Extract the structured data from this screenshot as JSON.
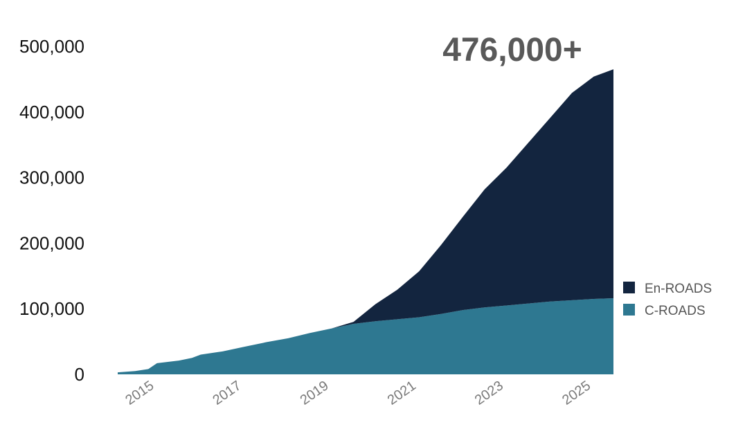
{
  "chart_data": {
    "type": "area",
    "stacked": true,
    "annotation": "476,000+",
    "y_ticks": [
      "500,000",
      "400,000",
      "300,000",
      "200,000",
      "100,000",
      "0"
    ],
    "x_ticks": [
      "2015",
      "2017",
      "2019",
      "2021",
      "2023",
      "2025"
    ],
    "ylim": [
      0,
      500000
    ],
    "xlim": [
      2014.6,
      2025.95
    ],
    "grid": false,
    "legend_position": "right",
    "x": [
      2014.6,
      2015.0,
      2015.3,
      2015.5,
      2016.0,
      2016.3,
      2016.5,
      2017.0,
      2017.5,
      2018.0,
      2018.5,
      2019.0,
      2019.5,
      2020.0,
      2020.5,
      2021.0,
      2021.5,
      2022.0,
      2022.5,
      2023.0,
      2023.5,
      2024.0,
      2024.5,
      2025.0,
      2025.5,
      2025.95
    ],
    "series": [
      {
        "name": "C-ROADS",
        "color": "#2e7891",
        "values": [
          3000,
          5000,
          8000,
          17000,
          21000,
          25000,
          30000,
          35000,
          42000,
          49000,
          55000,
          63000,
          70000,
          77000,
          81000,
          84000,
          87000,
          92000,
          98000,
          102000,
          105000,
          108000,
          111000,
          113000,
          115000,
          116000
        ]
      },
      {
        "name": "En-ROADS",
        "color": "#13253f",
        "values": [
          0,
          0,
          0,
          0,
          0,
          0,
          0,
          0,
          0,
          0,
          0,
          0,
          0,
          3000,
          26000,
          45000,
          70000,
          105000,
          142000,
          180000,
          210000,
          245000,
          280000,
          316000,
          339000,
          349000
        ]
      }
    ]
  }
}
